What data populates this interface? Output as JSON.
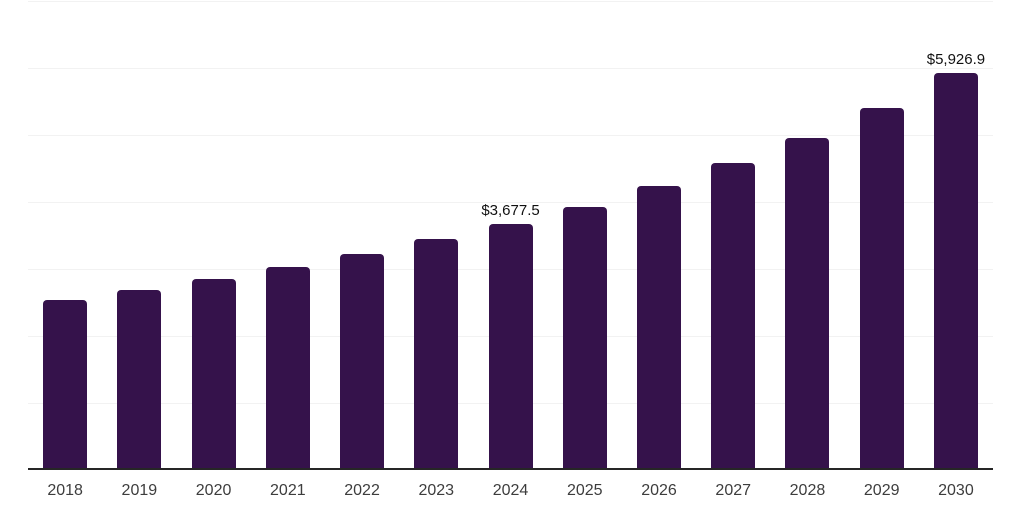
{
  "chart_data": {
    "type": "bar",
    "title": "",
    "xlabel": "",
    "ylabel": "",
    "categories": [
      "2018",
      "2019",
      "2020",
      "2021",
      "2022",
      "2023",
      "2024",
      "2025",
      "2026",
      "2027",
      "2028",
      "2029",
      "2030"
    ],
    "values": [
      2537,
      2687,
      2846,
      3030,
      3224,
      3448,
      3677.5,
      3925,
      4239,
      4582,
      4957,
      5405,
      5926.9
    ],
    "value_labels": {
      "2024": "$3,677.5",
      "2030": "$5,926.9"
    },
    "ylim": [
      0,
      7000
    ],
    "gridline_step": 1000,
    "grid": true,
    "legend": false,
    "y_axis_labels_shown": false,
    "colors": {
      "bar": "#35124B",
      "gridline": "#F2F2F2",
      "axis_line": "#262626",
      "tick_label": "#3D3D3D",
      "value_label": "#111111",
      "background": "#FFFFFF"
    }
  }
}
